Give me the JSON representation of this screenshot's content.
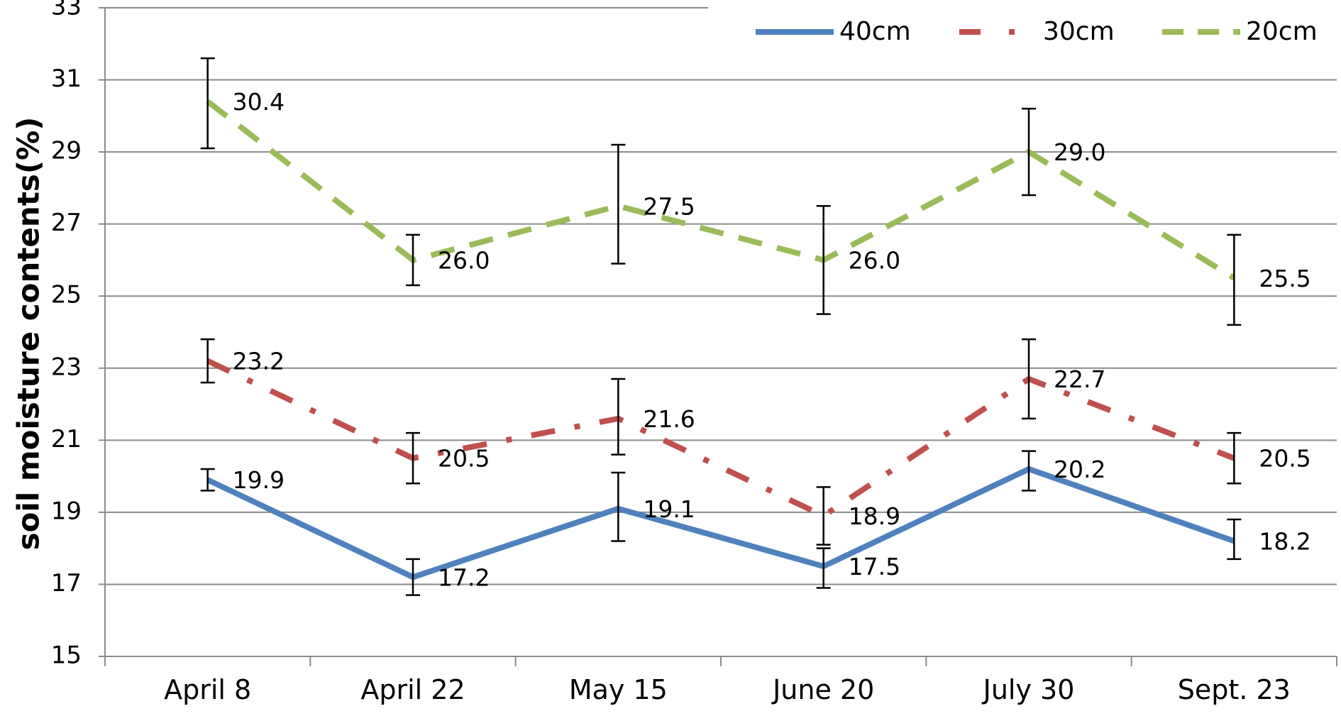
{
  "chart_data": {
    "type": "line",
    "title": "",
    "xlabel": "",
    "ylabel": "soil moisture contents(%)",
    "ylim": [
      15,
      33
    ],
    "yticks": [
      "15",
      "17",
      "19",
      "21",
      "23",
      "25",
      "27",
      "29",
      "31",
      "33"
    ],
    "categories": [
      "April 8",
      "April 22",
      "May 15",
      "June 20",
      "July 30",
      "Sept. 23"
    ],
    "grid": "horizontal",
    "legend_position": "top-right",
    "series": [
      {
        "name": "40cm",
        "color": "#4F81BD",
        "style": "solid",
        "values": [
          19.9,
          17.2,
          19.1,
          17.5,
          20.2,
          18.2
        ],
        "labels": [
          "19.9",
          "17.2",
          "19.1",
          "17.5",
          "20.2",
          "18.2"
        ],
        "error_low": [
          19.6,
          16.7,
          18.2,
          16.9,
          19.6,
          17.7
        ],
        "error_high": [
          20.2,
          17.7,
          20.1,
          18.0,
          20.7,
          18.8
        ]
      },
      {
        "name": "30cm",
        "color": "#C0504D",
        "style": "dash-dot",
        "values": [
          23.2,
          20.5,
          21.6,
          18.9,
          22.7,
          20.5
        ],
        "labels": [
          "23.2",
          "20.5",
          "21.6",
          "18.9",
          "22.7",
          "20.5"
        ],
        "error_low": [
          22.6,
          19.8,
          20.6,
          18.1,
          21.6,
          19.8
        ],
        "error_high": [
          23.8,
          21.2,
          22.7,
          19.7,
          23.8,
          21.2
        ]
      },
      {
        "name": "20cm",
        "color": "#9BBB59",
        "style": "dashed",
        "values": [
          30.4,
          26.0,
          27.5,
          26.0,
          29.0,
          25.5
        ],
        "labels": [
          "30.4",
          "26.0",
          "27.5",
          "26.0",
          "29.0",
          "25.5"
        ],
        "error_low": [
          29.1,
          25.3,
          25.9,
          24.5,
          27.8,
          24.2
        ],
        "error_high": [
          31.6,
          26.7,
          29.2,
          27.5,
          30.2,
          26.7
        ]
      }
    ]
  }
}
